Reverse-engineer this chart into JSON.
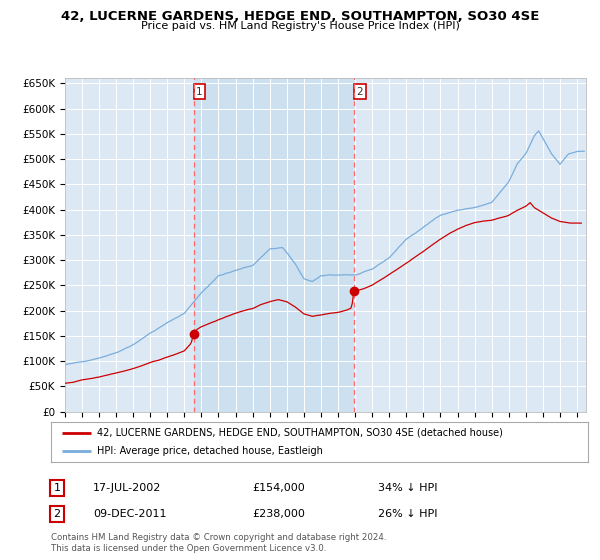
{
  "title": "42, LUCERNE GARDENS, HEDGE END, SOUTHAMPTON, SO30 4SE",
  "subtitle": "Price paid vs. HM Land Registry's House Price Index (HPI)",
  "ylim": [
    0,
    660000
  ],
  "yticks": [
    0,
    50000,
    100000,
    150000,
    200000,
    250000,
    300000,
    350000,
    400000,
    450000,
    500000,
    550000,
    600000,
    650000
  ],
  "ytick_labels": [
    "£0",
    "£50K",
    "£100K",
    "£150K",
    "£200K",
    "£250K",
    "£300K",
    "£350K",
    "£400K",
    "£450K",
    "£500K",
    "£550K",
    "£600K",
    "£650K"
  ],
  "xlim_start": 1995.0,
  "xlim_end": 2025.5,
  "bg_color": "#dce9f5",
  "highlight_bg": "#cce0f0",
  "grid_color": "#ffffff",
  "red_line_color": "#cc0000",
  "blue_line_color": "#7aaddb",
  "dashed_color": "#ff6666",
  "sale1_date_str": "17-JUL-2002",
  "sale1_price": 154000,
  "sale1_pct": "34% ↓ HPI",
  "sale1_year": 2002.54,
  "sale2_date_str": "09-DEC-2011",
  "sale2_price": 238000,
  "sale2_pct": "26% ↓ HPI",
  "sale2_year": 2011.92,
  "legend_label_red": "42, LUCERNE GARDENS, HEDGE END, SOUTHAMPTON, SO30 4SE (detached house)",
  "legend_label_blue": "HPI: Average price, detached house, Eastleigh",
  "footnote": "Contains HM Land Registry data © Crown copyright and database right 2024.\nThis data is licensed under the Open Government Licence v3.0."
}
